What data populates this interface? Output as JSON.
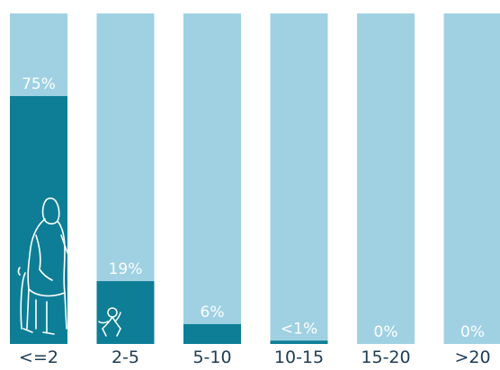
{
  "chart_data": {
    "type": "bar",
    "title": "",
    "xlabel": "",
    "ylabel": "",
    "ylim": [
      0,
      100
    ],
    "categories": [
      "<=2",
      "2-5",
      "5-10",
      "10-15",
      "15-20",
      ">20"
    ],
    "values": [
      75,
      19,
      6,
      1,
      0,
      0
    ],
    "value_labels": [
      "75%",
      "19%",
      "6%",
      "<1%",
      "0%",
      "0%"
    ],
    "colors": {
      "track": "#9fd1e3",
      "fill": "#0e7e96",
      "label_text": "#ffffff",
      "category_text": "#1c3c55"
    },
    "grid": false,
    "legend": "none",
    "icons": [
      "elderly-person-with-cane-icon",
      "small-child-icon"
    ]
  }
}
